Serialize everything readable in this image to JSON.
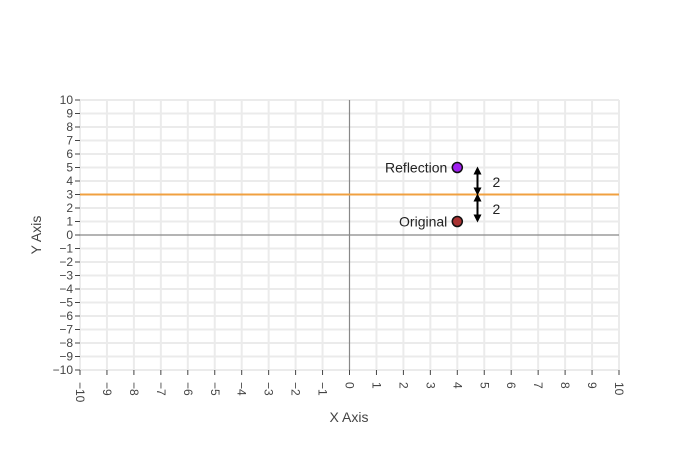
{
  "chart_data": {
    "type": "scatter",
    "xlabel": "X Axis",
    "ylabel": "Y Axis",
    "xlim": [
      -10,
      10
    ],
    "ylim": [
      -10,
      10
    ],
    "x_ticks": [
      -10,
      -9,
      -8,
      -7,
      -6,
      -5,
      -4,
      -3,
      -2,
      -1,
      0,
      1,
      2,
      3,
      4,
      5,
      6,
      7,
      8,
      9,
      10
    ],
    "y_ticks": [
      -10,
      -9,
      -8,
      -7,
      -6,
      -5,
      -4,
      -3,
      -2,
      -1,
      0,
      1,
      2,
      3,
      4,
      5,
      6,
      7,
      8,
      9,
      10
    ],
    "grid": true,
    "mirror_line": {
      "type": "horizontal",
      "y": 3,
      "color": "#f0a040"
    },
    "points": [
      {
        "label": "Original",
        "x": 4,
        "y": 1,
        "color": "#a83232"
      },
      {
        "label": "Reflection",
        "x": 4,
        "y": 5,
        "color": "#a020f0"
      }
    ],
    "distance_markers": [
      {
        "label": "2",
        "x": 4.75,
        "y_from": 3,
        "y_to": 5
      },
      {
        "label": "2",
        "x": 4.75,
        "y_from": 1,
        "y_to": 3
      }
    ]
  }
}
